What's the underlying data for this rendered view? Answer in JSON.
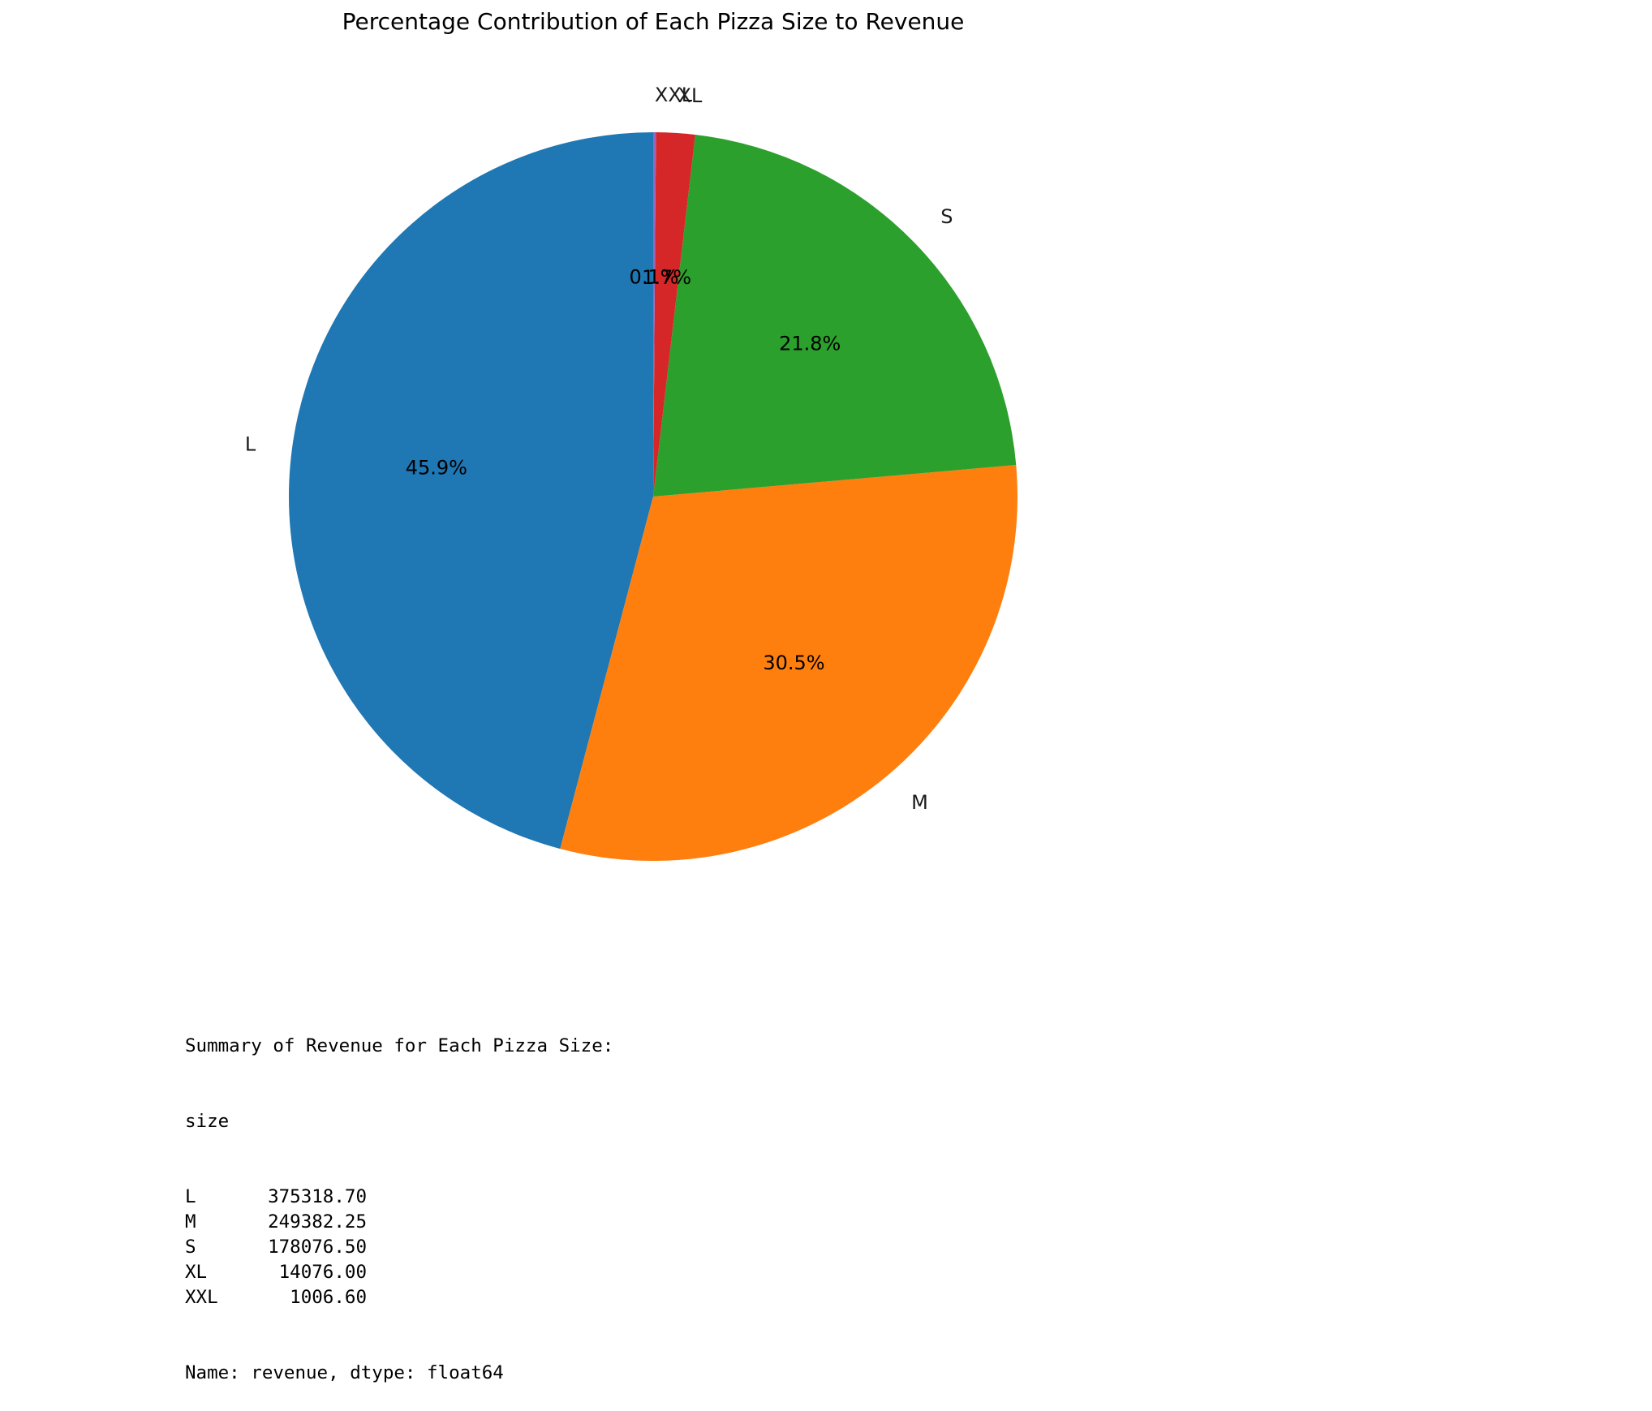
{
  "chart_data": {
    "type": "pie",
    "title": "Percentage Contribution of Each Pizza Size to Revenue",
    "start_angle_deg": 90,
    "direction": "counterclockwise",
    "slices": [
      {
        "label": "L",
        "value": 375318.7,
        "pct_label": "45.9%",
        "color": "#1f77b4"
      },
      {
        "label": "M",
        "value": 249382.25,
        "pct_label": "30.5%",
        "color": "#ff7f0e"
      },
      {
        "label": "S",
        "value": 178076.5,
        "pct_label": "21.8%",
        "color": "#2ca02c"
      },
      {
        "label": "XL",
        "value": 14076.0,
        "pct_label": "1.7%",
        "color": "#d62728"
      },
      {
        "label": "XXL",
        "value": 1006.6,
        "pct_label": "0.1%",
        "color": "#9467bd"
      }
    ]
  },
  "summary": {
    "heading": "Summary of Revenue for Each Pizza Size:",
    "index_name": "size",
    "rows": [
      {
        "size": "L",
        "revenue": "375318.70"
      },
      {
        "size": "M",
        "revenue": "249382.25"
      },
      {
        "size": "S",
        "revenue": "178076.50"
      },
      {
        "size": "XL",
        "revenue": "14076.00"
      },
      {
        "size": "XXL",
        "revenue": "1006.60"
      }
    ],
    "footer": "Name: revenue, dtype: float64"
  }
}
